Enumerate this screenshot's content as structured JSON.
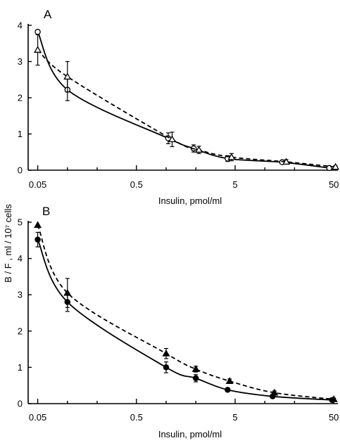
{
  "y_axis_title": "B / F ,  ml / 10⁷ cells",
  "chart_data": [
    {
      "type": "line",
      "panel_label": "A",
      "xlabel": "Insulin, pmol/ml",
      "x_scale": "log",
      "xlim": [
        0.04,
        55
      ],
      "ylim": [
        0,
        4
      ],
      "x_ticks": [
        0.05,
        0.5,
        5,
        50
      ],
      "x_tick_labels": [
        "0.05",
        "0.5",
        "5",
        "50"
      ],
      "y_ticks": [
        0,
        1,
        2,
        3,
        4
      ],
      "y_tick_labels": [
        "0",
        "1",
        "2",
        "3",
        "4"
      ],
      "series": [
        {
          "marker": "open-circle",
          "line": "solid",
          "x": [
            0.05,
            0.1,
            1.05,
            1.9,
            4.2,
            15,
            45
          ],
          "y": [
            3.82,
            2.22,
            0.88,
            0.6,
            0.32,
            0.22,
            0.06
          ],
          "err": [
            0,
            0.3,
            0.15,
            0.1,
            0.08,
            0.05,
            0.03
          ]
        },
        {
          "marker": "open-triangle",
          "line": "dashed",
          "x": [
            0.05,
            0.1,
            1.15,
            2.15,
            4.6,
            16.5,
            52
          ],
          "y": [
            3.32,
            2.58,
            0.85,
            0.56,
            0.36,
            0.23,
            0.09
          ],
          "err": [
            0.42,
            0.42,
            0.2,
            0.1,
            0.1,
            0.06,
            0.03
          ]
        }
      ]
    },
    {
      "type": "line",
      "panel_label": "B",
      "xlabel": "Insulin, pmol/ml",
      "x_scale": "log",
      "xlim": [
        0.04,
        55
      ],
      "ylim": [
        0,
        5
      ],
      "x_ticks": [
        0.05,
        0.5,
        5,
        50
      ],
      "x_tick_labels": [
        "0.05",
        "0.5",
        "5",
        "50"
      ],
      "y_ticks": [
        0,
        1,
        2,
        3,
        4,
        5
      ],
      "y_tick_labels": [
        "0",
        "1",
        "2",
        "3",
        "4",
        "5"
      ],
      "series": [
        {
          "marker": "filled-circle",
          "line": "solid",
          "x": [
            0.05,
            0.1,
            1.0,
            2.0,
            4.2,
            12,
            48
          ],
          "y": [
            4.52,
            2.8,
            1.0,
            0.7,
            0.38,
            0.2,
            0.1
          ],
          "err": [
            0.2,
            0.26,
            0.15,
            0.1,
            0.05,
            0.05,
            0.03
          ]
        },
        {
          "marker": "filled-triangle",
          "line": "dashed",
          "x": [
            0.05,
            0.1,
            1.0,
            2.0,
            4.4,
            12.5,
            50
          ],
          "y": [
            4.92,
            3.05,
            1.38,
            0.95,
            0.62,
            0.3,
            0.12
          ],
          "err": [
            0,
            0.4,
            0.14,
            0.08,
            0.06,
            0.05,
            0.03
          ]
        }
      ]
    }
  ]
}
